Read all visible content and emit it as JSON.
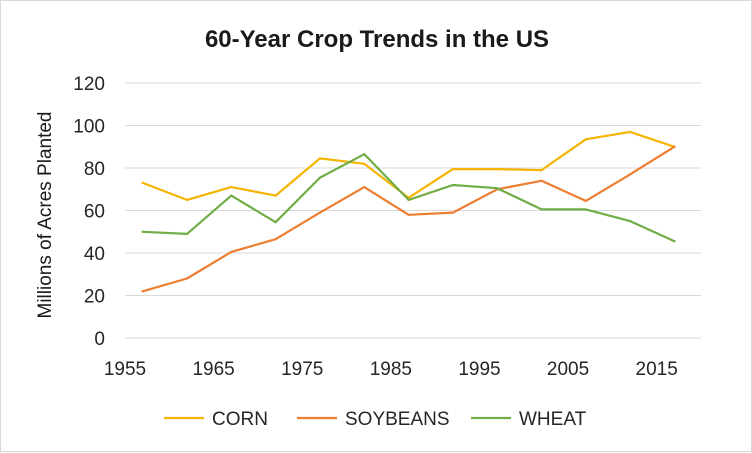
{
  "chart_data": {
    "type": "line",
    "title": "60-Year Crop Trends in the US",
    "xlabel": "",
    "ylabel": "Millions of Acres Planted",
    "xlim": [
      1955,
      2020
    ],
    "ylim": [
      0,
      120
    ],
    "x_ticks": [
      1955,
      1965,
      1975,
      1985,
      1995,
      2005,
      2015
    ],
    "y_ticks": [
      0,
      20,
      40,
      60,
      80,
      100,
      120
    ],
    "grid": "horizontal",
    "legend_position": "bottom",
    "series": [
      {
        "name": "CORN",
        "color": "#f4b400",
        "x": [
          1957,
          1962,
          1967,
          1972,
          1977,
          1982,
          1987,
          1992,
          1997,
          2002,
          2007,
          2012,
          2017
        ],
        "values": [
          73,
          65,
          71,
          67,
          84.5,
          82,
          66,
          79.5,
          79.5,
          79,
          93.5,
          97,
          90
        ]
      },
      {
        "name": "SOYBEANS",
        "color": "#ed7d31",
        "x": [
          1957,
          1962,
          1967,
          1972,
          1977,
          1982,
          1987,
          1992,
          1997,
          2002,
          2007,
          2012,
          2017
        ],
        "values": [
          22,
          28,
          40.5,
          46.5,
          59,
          71,
          58,
          59,
          70,
          74,
          64.5,
          77,
          90
        ]
      },
      {
        "name": "WHEAT",
        "color": "#70ad47",
        "x": [
          1957,
          1962,
          1967,
          1972,
          1977,
          1982,
          1987,
          1992,
          1997,
          2002,
          2007,
          2012,
          2017
        ],
        "values": [
          50,
          49,
          67,
          54.5,
          75.5,
          86.5,
          65,
          72,
          70.5,
          60.5,
          60.5,
          55,
          45.5
        ]
      }
    ]
  }
}
